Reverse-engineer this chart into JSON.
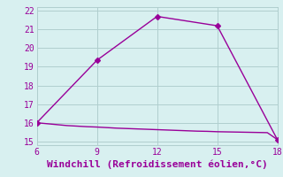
{
  "title": "",
  "xlabel": "Windchill (Refroidissement éolien,°C)",
  "background_color": "#d8f0f0",
  "grid_color": "#b0cece",
  "line_color": "#990099",
  "xlim": [
    6,
    18
  ],
  "ylim": [
    14.8,
    22.2
  ],
  "xticks": [
    6,
    9,
    12,
    15,
    18
  ],
  "yticks": [
    15,
    16,
    17,
    18,
    19,
    20,
    21,
    22
  ],
  "line1_x": [
    6,
    9,
    12,
    15,
    18
  ],
  "line1_y": [
    16.0,
    19.35,
    21.7,
    21.2,
    15.1
  ],
  "line2_x": [
    6,
    6.5,
    7,
    7.5,
    8,
    8.5,
    9,
    9.5,
    10,
    10.5,
    11,
    11.5,
    12,
    12.5,
    13,
    13.5,
    14,
    14.5,
    15,
    15.5,
    16,
    16.5,
    17,
    17.5,
    18
  ],
  "line2_y": [
    16.0,
    15.95,
    15.9,
    15.85,
    15.82,
    15.79,
    15.77,
    15.74,
    15.71,
    15.69,
    15.67,
    15.65,
    15.63,
    15.61,
    15.59,
    15.57,
    15.55,
    15.54,
    15.52,
    15.51,
    15.5,
    15.49,
    15.48,
    15.47,
    15.1
  ],
  "marker_size": 3,
  "line_width": 1.0,
  "xlabel_fontsize": 8,
  "tick_fontsize": 7
}
